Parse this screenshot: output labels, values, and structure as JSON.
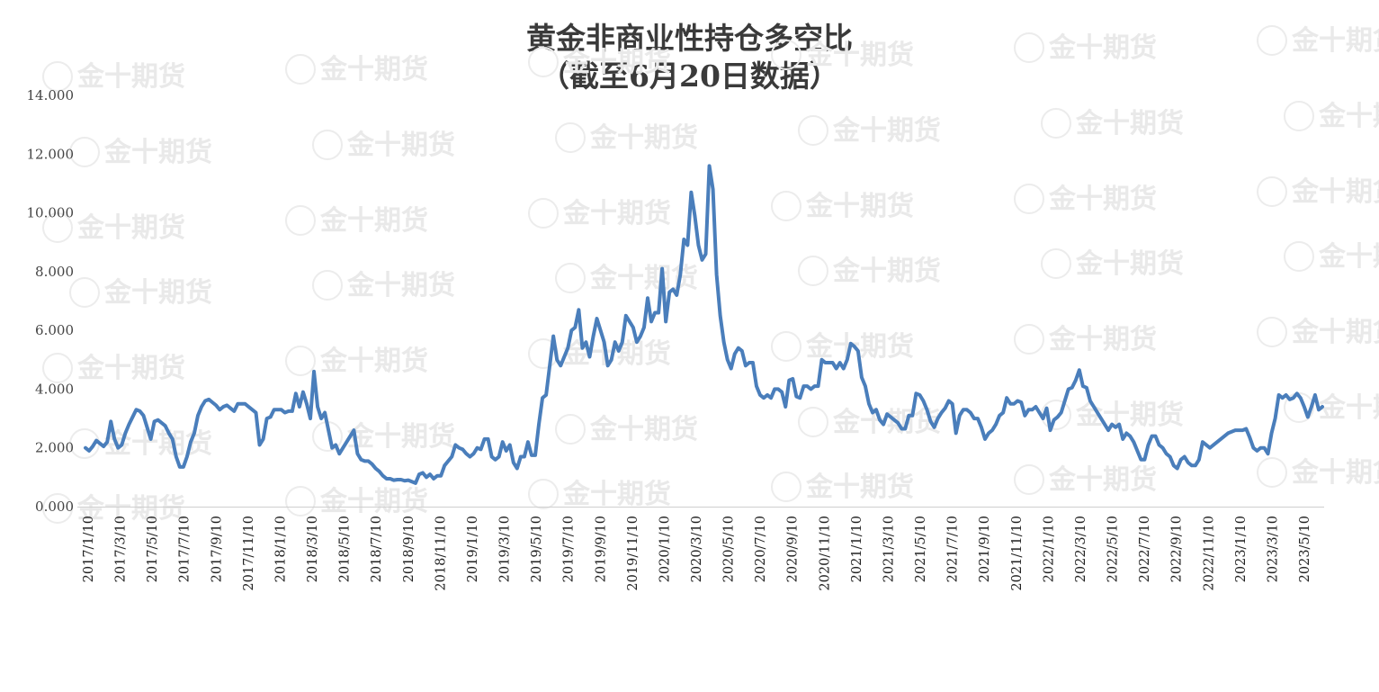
{
  "watermark": {
    "text": "金十期货",
    "color": "#e6e6e6"
  },
  "chart_data": {
    "type": "line",
    "title": "黄金非商业性持仓多空比",
    "subtitle": "（截至6月20日数据）",
    "xlabel": "",
    "ylabel": "",
    "ylim": [
      0,
      14
    ],
    "yticks": [
      "0.000",
      "2.000",
      "4.000",
      "6.000",
      "8.000",
      "10.000",
      "12.000",
      "14.000"
    ],
    "grid": false,
    "legend": "none",
    "line_color": "#4a7ebb",
    "x_tick_labels": [
      "2017/1/10",
      "2017/3/10",
      "2017/5/10",
      "2017/7/10",
      "2017/9/10",
      "2017/11/10",
      "2018/1/10",
      "2018/3/10",
      "2018/5/10",
      "2018/7/10",
      "2018/9/10",
      "2018/11/10",
      "2019/1/10",
      "2019/3/10",
      "2019/5/10",
      "2019/7/10",
      "2019/9/10",
      "2019/11/10",
      "2020/1/10",
      "2020/3/10",
      "2020/5/10",
      "2020/7/10",
      "2020/9/10",
      "2020/11/10",
      "2021/1/10",
      "2021/3/10",
      "2021/5/10",
      "2021/7/10",
      "2021/9/10",
      "2021/11/10",
      "2022/1/10",
      "2022/3/10",
      "2022/5/10",
      "2022/7/10",
      "2022/9/10",
      "2022/11/10",
      "2023/1/10",
      "2023/3/10",
      "2023/5/10"
    ],
    "series": [
      {
        "values": [
          2.0,
          1.9,
          2.05,
          2.25,
          2.15,
          2.05,
          2.2,
          2.9,
          2.3,
          2.0,
          2.1,
          2.5,
          2.8,
          3.05,
          3.3,
          3.25,
          3.1,
          2.7,
          2.3,
          2.9,
          2.95,
          2.85,
          2.75,
          2.5,
          2.3,
          1.7,
          1.35,
          1.35,
          1.7,
          2.2,
          2.5,
          3.1,
          3.4,
          3.6,
          3.65,
          3.55,
          3.45,
          3.3,
          3.4,
          3.45,
          3.35,
          3.25,
          3.5,
          3.5,
          3.5,
          3.4,
          3.3,
          3.2,
          2.1,
          2.3,
          3.0,
          3.05,
          3.3,
          3.3,
          3.3,
          3.2,
          3.25,
          3.25,
          3.85,
          3.4,
          3.9,
          3.5,
          3.0,
          4.6,
          3.4,
          3.0,
          3.2,
          2.6,
          2.0,
          2.1,
          1.8,
          2.0,
          2.2,
          2.4,
          2.6,
          1.8,
          1.6,
          1.55,
          1.55,
          1.45,
          1.3,
          1.2,
          1.05,
          0.95,
          0.95,
          0.9,
          0.92,
          0.92,
          0.88,
          0.9,
          0.85,
          0.8,
          1.1,
          1.15,
          1.0,
          1.1,
          0.95,
          1.05,
          1.05,
          1.4,
          1.55,
          1.7,
          2.1,
          2.0,
          1.95,
          1.8,
          1.7,
          1.8,
          2.0,
          1.95,
          2.3,
          2.3,
          1.7,
          1.6,
          1.7,
          2.2,
          1.9,
          2.1,
          1.5,
          1.3,
          1.7,
          1.7,
          2.2,
          1.75,
          1.75,
          2.8,
          3.7,
          3.8,
          4.8,
          5.8,
          5.0,
          4.8,
          5.1,
          5.4,
          6.0,
          6.1,
          6.7,
          5.4,
          5.6,
          5.1,
          5.8,
          6.4,
          6.0,
          5.6,
          4.8,
          5.0,
          5.6,
          5.3,
          5.6,
          6.5,
          6.3,
          6.1,
          5.6,
          5.8,
          6.1,
          7.1,
          6.3,
          6.6,
          6.6,
          8.1,
          6.3,
          7.3,
          7.4,
          7.2,
          7.9,
          9.1,
          8.9,
          10.7,
          9.9,
          8.9,
          8.4,
          8.6,
          11.6,
          10.8,
          7.9,
          6.5,
          5.6,
          5.0,
          4.7,
          5.2,
          5.4,
          5.3,
          4.8,
          4.9,
          4.9,
          4.1,
          3.8,
          3.7,
          3.8,
          3.7,
          4.0,
          4.0,
          3.9,
          3.4,
          4.3,
          4.35,
          3.75,
          3.7,
          4.1,
          4.1,
          4.0,
          4.1,
          4.1,
          5.0,
          4.9,
          4.9,
          4.9,
          4.7,
          4.9,
          4.7,
          5.0,
          5.55,
          5.45,
          5.3,
          4.4,
          4.1,
          3.5,
          3.2,
          3.3,
          2.95,
          2.8,
          3.15,
          3.05,
          2.95,
          2.85,
          2.65,
          2.65,
          3.1,
          3.1,
          3.85,
          3.8,
          3.6,
          3.3,
          2.9,
          2.7,
          3.0,
          3.2,
          3.35,
          3.6,
          3.5,
          2.5,
          3.1,
          3.3,
          3.3,
          3.2,
          3.0,
          3.0,
          2.7,
          2.3,
          2.5,
          2.6,
          2.8,
          3.1,
          3.2,
          3.7,
          3.5,
          3.5,
          3.6,
          3.55,
          3.1,
          3.3,
          3.3,
          3.4,
          3.2,
          3.0,
          3.35,
          2.6,
          2.95,
          3.05,
          3.2,
          3.6,
          4.0,
          4.05,
          4.3,
          4.65,
          4.1,
          4.05,
          3.6,
          3.4,
          3.2,
          3.0,
          2.8,
          2.6,
          2.8,
          2.7,
          2.8,
          2.3,
          2.5,
          2.4,
          2.2,
          1.9,
          1.6,
          1.6,
          2.1,
          2.4,
          2.4,
          2.1,
          2.0,
          1.8,
          1.7,
          1.4,
          1.3,
          1.6,
          1.7,
          1.5,
          1.4,
          1.4,
          1.6,
          2.2,
          2.1,
          2.0,
          2.1,
          2.2,
          2.3,
          2.4,
          2.5,
          2.55,
          2.6,
          2.6,
          2.6,
          2.65,
          2.35,
          2.0,
          1.9,
          2.0,
          2.0,
          1.8,
          2.5,
          3.0,
          3.8,
          3.7,
          3.8,
          3.65,
          3.7,
          3.85,
          3.7,
          3.4,
          3.05,
          3.4,
          3.8,
          3.3,
          3.4
        ]
      }
    ]
  }
}
